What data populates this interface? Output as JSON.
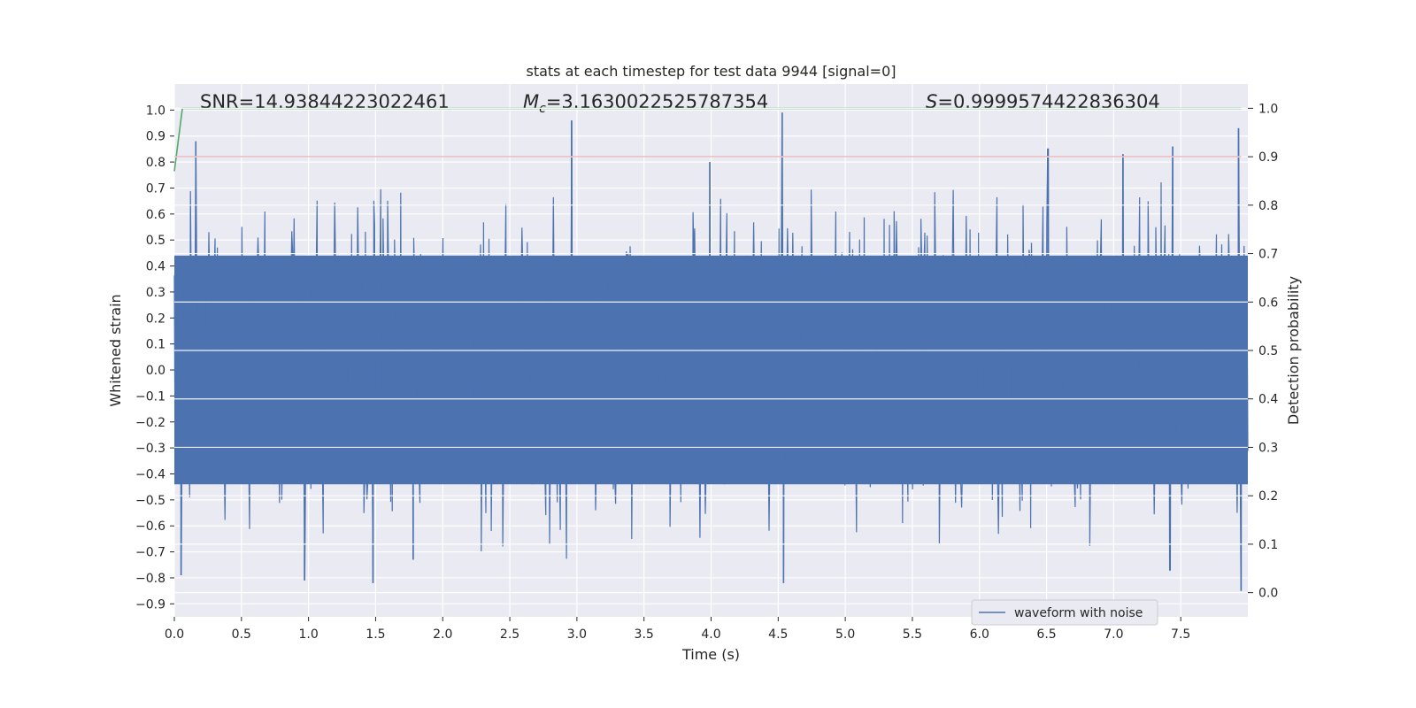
{
  "chart_data": {
    "type": "line",
    "title": "stats at each timestep for test data 9944 [signal=0]",
    "xlabel": "Time (s)",
    "ylabel": "Whitened strain",
    "y2label": "Detection probability",
    "xlim": [
      0.0,
      8.0
    ],
    "ylim": [
      -0.95,
      1.1
    ],
    "y2lim": [
      -0.05,
      1.05
    ],
    "xticks": [
      "0.0",
      "0.5",
      "1.0",
      "1.5",
      "2.0",
      "2.5",
      "3.0",
      "3.5",
      "4.0",
      "4.5",
      "5.0",
      "5.5",
      "6.0",
      "6.5",
      "7.0",
      "7.5"
    ],
    "yticks": [
      "−0.9",
      "−0.8",
      "−0.7",
      "−0.6",
      "−0.5",
      "−0.4",
      "−0.3",
      "−0.2",
      "−0.1",
      "0.0",
      "0.1",
      "0.2",
      "0.3",
      "0.4",
      "0.5",
      "0.6",
      "0.7",
      "0.8",
      "0.9",
      "1.0"
    ],
    "y2ticks": [
      "0.0",
      "0.1",
      "0.2",
      "0.3",
      "0.4",
      "0.5",
      "0.6",
      "0.7",
      "0.8",
      "0.9",
      "1.0"
    ],
    "annotations": {
      "snr": "SNR=14.93844223022461",
      "mc_symbol": "M",
      "mc_sub": "c",
      "mc_value": "=3.1630022525787354",
      "s_symbol": "S",
      "s_value": "=0.9999574422836304"
    },
    "grid": true,
    "legend_position": "lower-right",
    "series": [
      {
        "name": "waveform with noise",
        "axis": "left",
        "color": "#4c72b0",
        "duration": 8.0,
        "envelope_positive": 0.44,
        "envelope_negative": -0.44,
        "peaks": [
          [
            0.16,
            0.88
          ],
          [
            2.96,
            0.96
          ],
          [
            3.99,
            0.8
          ],
          [
            4.53,
            0.99
          ],
          [
            6.51,
            0.85
          ],
          [
            7.07,
            0.83
          ],
          [
            7.44,
            0.86
          ],
          [
            7.93,
            0.93
          ],
          [
            7.95,
            -0.85
          ],
          [
            1.48,
            -0.82
          ],
          [
            0.97,
            -0.81
          ],
          [
            4.54,
            -0.82
          ],
          [
            1.78,
            -0.73
          ],
          [
            7.42,
            -0.77
          ],
          [
            0.05,
            -0.79
          ]
        ]
      },
      {
        "axis": "right",
        "color": "#55a868",
        "x": [
          0.0,
          0.06,
          7.95
        ],
        "values": [
          0.87,
          1.0,
          1.0
        ]
      },
      {
        "axis": "right",
        "color": "#c44e52",
        "x": [
          0.0,
          7.95
        ],
        "values": [
          0.9,
          0.9
        ]
      }
    ]
  }
}
